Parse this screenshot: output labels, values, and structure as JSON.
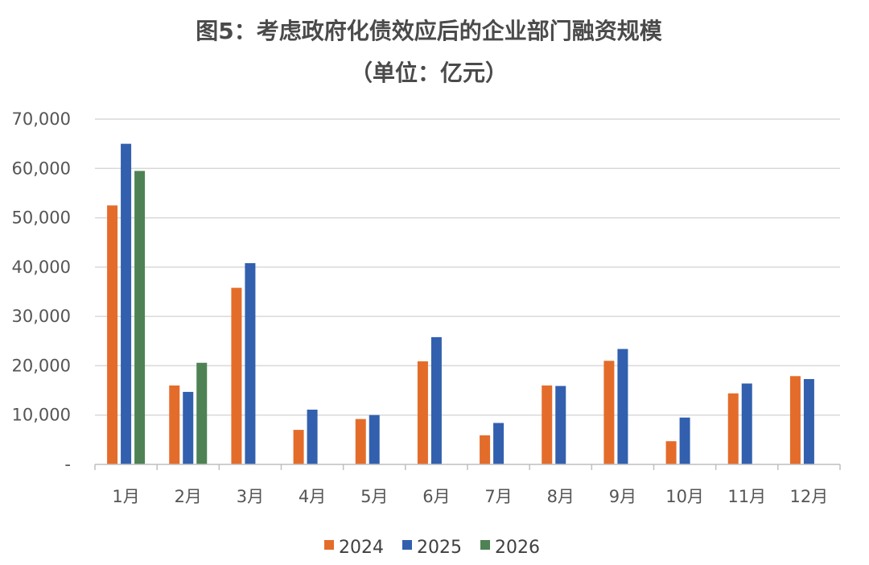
{
  "chart_data": {
    "type": "bar",
    "title": "图5：考虑政府化债效应后的企业部门融资规模",
    "subtitle": "（单位：亿元）",
    "categories": [
      "1月",
      "2月",
      "3月",
      "4月",
      "5月",
      "6月",
      "7月",
      "8月",
      "9月",
      "10月",
      "11月",
      "12月"
    ],
    "series": [
      {
        "name": "2024",
        "color": "#E46C2A",
        "values": [
          52500,
          16000,
          35800,
          7000,
          9200,
          20900,
          5900,
          16000,
          21000,
          4700,
          14400,
          17900
        ]
      },
      {
        "name": "2025",
        "color": "#3260AE",
        "values": [
          65000,
          14700,
          40800,
          11100,
          10000,
          25800,
          8400,
          15900,
          23400,
          9500,
          16400,
          17300
        ]
      },
      {
        "name": "2026",
        "color": "#4E8254",
        "values": [
          59500,
          20600,
          null,
          null,
          null,
          null,
          null,
          null,
          null,
          null,
          null,
          null
        ]
      }
    ],
    "yticks": [
      "-",
      "10,000",
      "20,000",
      "30,000",
      "40,000",
      "50,000",
      "60,000",
      "70,000"
    ],
    "ylim": [
      0,
      70000
    ],
    "grid": true,
    "legend_position": "bottom"
  }
}
